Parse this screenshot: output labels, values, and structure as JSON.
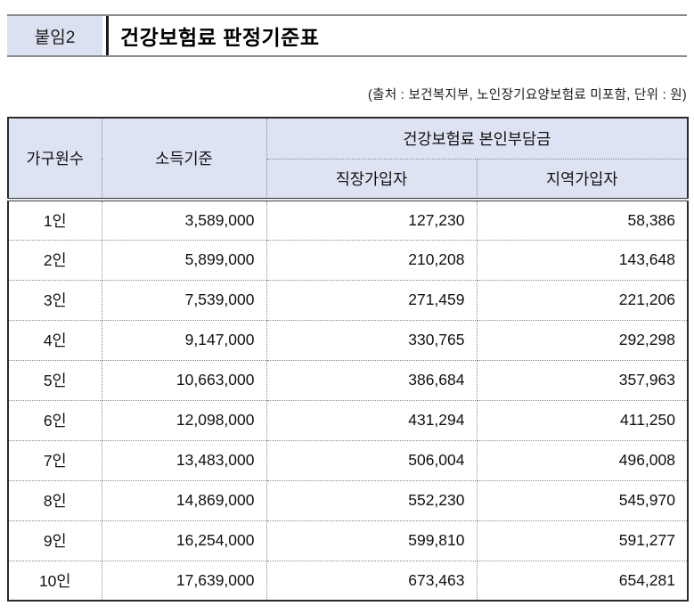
{
  "page": {
    "badge": "붙임2",
    "title": "건강보험료 판정기준표",
    "source_note": "(출처 : 보건복지부, 노인장기요양보험료 미포함, 단위 : 원)"
  },
  "colors": {
    "header_bg": "#dee3f3",
    "badge_bg": "#dce1f1",
    "outer_border": "#2b2b2b",
    "dotted_border": "#8a8a8a",
    "titlebar_line": "#8a8a8a"
  },
  "table": {
    "headers": {
      "household": "가구원수",
      "income": "소득기준",
      "copay_group": "건강보험료 본인부담금",
      "workplace": "직장가입자",
      "regional": "지역가입자"
    },
    "rows": [
      {
        "household": "1인",
        "income": "3,589,000",
        "workplace": "127,230",
        "regional": "58,386"
      },
      {
        "household": "2인",
        "income": "5,899,000",
        "workplace": "210,208",
        "regional": "143,648"
      },
      {
        "household": "3인",
        "income": "7,539,000",
        "workplace": "271,459",
        "regional": "221,206"
      },
      {
        "household": "4인",
        "income": "9,147,000",
        "workplace": "330,765",
        "regional": "292,298"
      },
      {
        "household": "5인",
        "income": "10,663,000",
        "workplace": "386,684",
        "regional": "357,963"
      },
      {
        "household": "6인",
        "income": "12,098,000",
        "workplace": "431,294",
        "regional": "411,250"
      },
      {
        "household": "7인",
        "income": "13,483,000",
        "workplace": "506,004",
        "regional": "496,008"
      },
      {
        "household": "8인",
        "income": "14,869,000",
        "workplace": "552,230",
        "regional": "545,970"
      },
      {
        "household": "9인",
        "income": "16,254,000",
        "workplace": "599,810",
        "regional": "591,277"
      },
      {
        "household": "10인",
        "income": "17,639,000",
        "workplace": "673,463",
        "regional": "654,281"
      }
    ]
  }
}
